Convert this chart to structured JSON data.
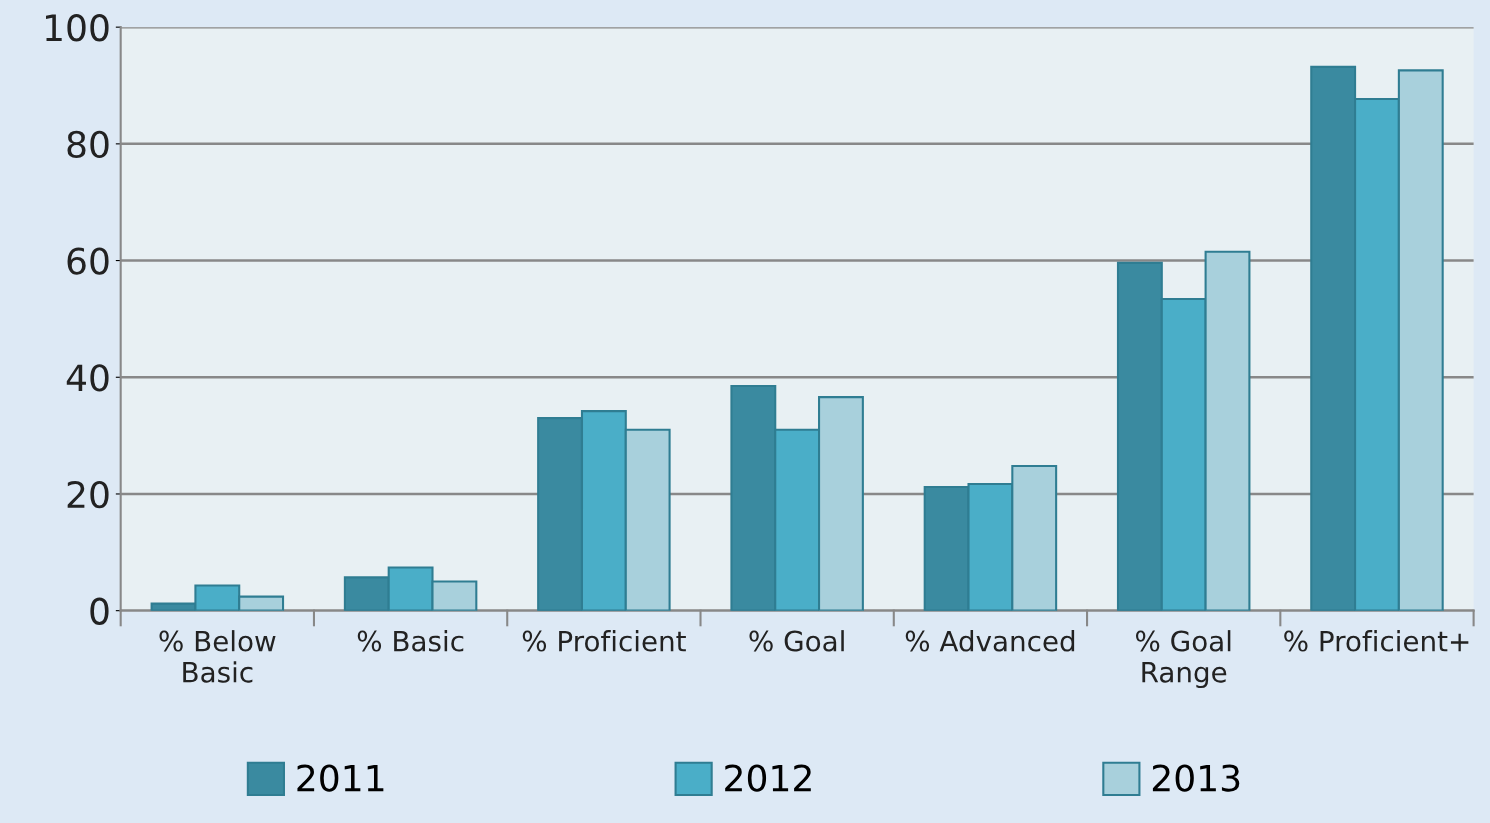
{
  "chart_data": {
    "type": "bar",
    "categories": [
      "% Below\nBasic",
      "% Basic",
      "% Proficient",
      "% Goal",
      "% Advanced",
      "% Goal\nRange",
      "% Proficient+"
    ],
    "series": [
      {
        "name": "2011",
        "color": "#3a8aa0",
        "values": [
          1.2,
          5.7,
          33.0,
          38.5,
          21.2,
          59.6,
          93.2
        ]
      },
      {
        "name": "2012",
        "color": "#4aaec8",
        "values": [
          4.3,
          7.4,
          34.2,
          31.0,
          21.7,
          53.4,
          87.7
        ]
      },
      {
        "name": "2013",
        "color": "#a8d0dc",
        "values": [
          2.4,
          5.0,
          31.0,
          36.6,
          24.8,
          61.5,
          92.6
        ]
      }
    ],
    "ylim": [
      0,
      100
    ],
    "yticks": [
      0,
      20,
      40,
      60,
      80,
      100
    ],
    "grid": "y",
    "legend": "bottom"
  }
}
